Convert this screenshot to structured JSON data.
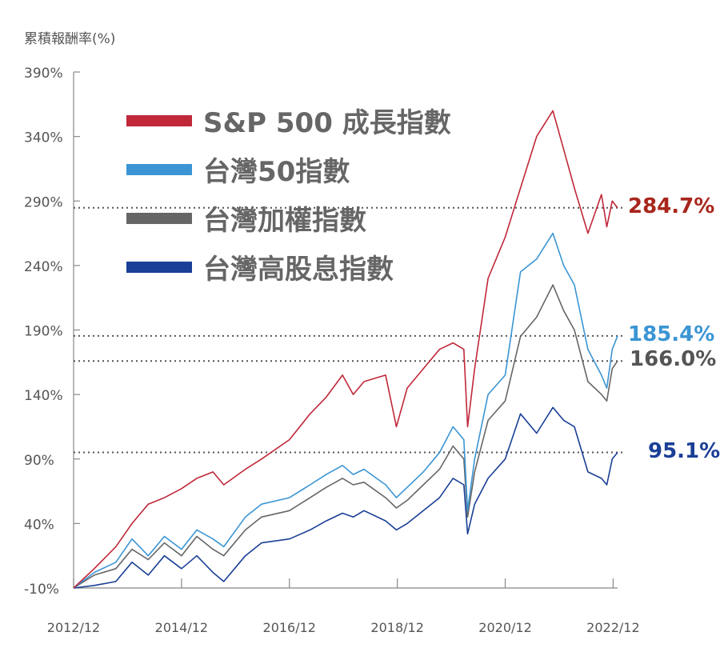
{
  "chart_data": {
    "type": "line",
    "ylabel": "累積報酬率(%)",
    "ylim": [
      -10,
      390
    ],
    "yticks": [
      "390%",
      "340%",
      "290%",
      "240%",
      "190%",
      "140%",
      "90%",
      "40%",
      "-10%"
    ],
    "ytick_values": [
      390,
      340,
      290,
      240,
      190,
      140,
      90,
      40,
      -10
    ],
    "xlim": [
      2012.917,
      2023.0
    ],
    "xticks": [
      "2012/12",
      "2014/12",
      "2016/12",
      "2018/12",
      "2020/12",
      "2022/12"
    ],
    "xtick_values": [
      2012.917,
      2014.917,
      2016.917,
      2018.917,
      2020.917,
      2022.917
    ],
    "grid": false,
    "legend": "top-left",
    "series": [
      {
        "name": "S&P 500 成長指數",
        "color": "#c0283a",
        "end_label": "284.7%",
        "end_value": 284.7,
        "x": [
          2012.917,
          2013.3,
          2013.7,
          2014.0,
          2014.3,
          2014.6,
          2014.917,
          2015.2,
          2015.5,
          2015.7,
          2016.1,
          2016.4,
          2016.917,
          2017.3,
          2017.6,
          2017.9,
          2018.1,
          2018.3,
          2018.7,
          2018.9,
          2019.1,
          2019.4,
          2019.7,
          2019.95,
          2020.15,
          2020.22,
          2020.35,
          2020.6,
          2020.917,
          2021.2,
          2021.5,
          2021.8,
          2022.0,
          2022.2,
          2022.45,
          2022.7,
          2022.8,
          2022.9,
          2023.0
        ],
        "values": [
          -10,
          5,
          22,
          40,
          55,
          60,
          67,
          75,
          80,
          70,
          82,
          90,
          105,
          125,
          138,
          155,
          140,
          150,
          155,
          115,
          145,
          160,
          175,
          180,
          175,
          115,
          160,
          230,
          262,
          300,
          340,
          360,
          330,
          300,
          265,
          295,
          270,
          290,
          284.7
        ]
      },
      {
        "name": "台灣50指數",
        "color": "#3b95d4",
        "end_label": "185.4%",
        "end_value": 185.4,
        "x": [
          2012.917,
          2013.3,
          2013.7,
          2014.0,
          2014.3,
          2014.6,
          2014.917,
          2015.2,
          2015.5,
          2015.7,
          2016.1,
          2016.4,
          2016.917,
          2017.3,
          2017.6,
          2017.9,
          2018.1,
          2018.3,
          2018.7,
          2018.9,
          2019.1,
          2019.4,
          2019.7,
          2019.95,
          2020.15,
          2020.22,
          2020.35,
          2020.6,
          2020.917,
          2021.2,
          2021.5,
          2021.8,
          2022.0,
          2022.2,
          2022.45,
          2022.7,
          2022.8,
          2022.9,
          2023.0
        ],
        "values": [
          -10,
          2,
          10,
          28,
          15,
          30,
          20,
          35,
          28,
          22,
          45,
          55,
          60,
          70,
          78,
          85,
          78,
          82,
          70,
          60,
          68,
          80,
          95,
          115,
          105,
          50,
          90,
          140,
          155,
          235,
          245,
          265,
          240,
          225,
          175,
          155,
          145,
          175,
          185.4
        ]
      },
      {
        "name": "台灣加權指數",
        "color": "#666666",
        "end_label": "166.0%",
        "end_value": 166.0,
        "x": [
          2012.917,
          2013.3,
          2013.7,
          2014.0,
          2014.3,
          2014.6,
          2014.917,
          2015.2,
          2015.5,
          2015.7,
          2016.1,
          2016.4,
          2016.917,
          2017.3,
          2017.6,
          2017.9,
          2018.1,
          2018.3,
          2018.7,
          2018.9,
          2019.1,
          2019.4,
          2019.7,
          2019.95,
          2020.15,
          2020.22,
          2020.35,
          2020.6,
          2020.917,
          2021.2,
          2021.5,
          2021.8,
          2022.0,
          2022.2,
          2022.45,
          2022.7,
          2022.8,
          2022.9,
          2023.0
        ],
        "values": [
          -10,
          0,
          5,
          20,
          12,
          25,
          15,
          30,
          20,
          15,
          35,
          45,
          50,
          60,
          68,
          75,
          70,
          72,
          60,
          52,
          58,
          70,
          82,
          100,
          90,
          45,
          80,
          120,
          135,
          185,
          200,
          225,
          205,
          190,
          150,
          140,
          135,
          160,
          166.0
        ]
      },
      {
        "name": "台灣高股息指數",
        "color": "#1a3f96",
        "end_label": "95.1%",
        "end_value": 95.1,
        "x": [
          2012.917,
          2013.3,
          2013.7,
          2014.0,
          2014.3,
          2014.6,
          2014.917,
          2015.2,
          2015.5,
          2015.7,
          2016.1,
          2016.4,
          2016.917,
          2017.3,
          2017.6,
          2017.9,
          2018.1,
          2018.3,
          2018.7,
          2018.9,
          2019.1,
          2019.4,
          2019.7,
          2019.95,
          2020.15,
          2020.22,
          2020.35,
          2020.6,
          2020.917,
          2021.2,
          2021.5,
          2021.8,
          2022.0,
          2022.2,
          2022.45,
          2022.7,
          2022.8,
          2022.9,
          2023.0
        ],
        "values": [
          -10,
          -8,
          -5,
          10,
          0,
          15,
          5,
          15,
          2,
          -5,
          15,
          25,
          28,
          35,
          42,
          48,
          45,
          50,
          42,
          35,
          40,
          50,
          60,
          75,
          70,
          32,
          55,
          75,
          90,
          125,
          110,
          130,
          120,
          115,
          80,
          75,
          70,
          90,
          95.1
        ]
      }
    ]
  }
}
